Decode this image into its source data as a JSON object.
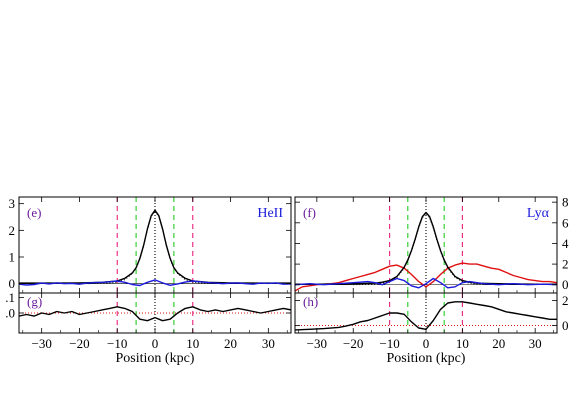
{
  "colors": {
    "black": "#000000",
    "blue": "#1a1adc",
    "red": "#e01010",
    "magenta": "#e8207a",
    "green": "#22cc22",
    "label": "#6a1b9a",
    "ion_label": "#1a1adc"
  },
  "chart_data": [
    {
      "id": "e",
      "type": "line",
      "panel_label": "(e)",
      "ion_label": "HeII",
      "xlabel": "Position (kpc)",
      "xlim": [
        -36,
        36
      ],
      "ylim": [
        -0.35,
        3.25
      ],
      "y_axis_side": "left",
      "xticks": [
        -30,
        -20,
        -10,
        0,
        10,
        20,
        30
      ],
      "yticks": [
        0,
        1,
        2,
        3
      ],
      "vlines": [
        {
          "x": -10,
          "color": "magenta"
        },
        {
          "x": 10,
          "color": "magenta"
        },
        {
          "x": -5,
          "color": "green"
        },
        {
          "x": 5,
          "color": "green"
        },
        {
          "x": 0,
          "color": "black"
        }
      ],
      "hline_zero": true,
      "series": [
        {
          "color": "black",
          "style": "solid",
          "x": [
            -36,
            -30,
            -20,
            -14,
            -10,
            -8,
            -6,
            -5,
            -4,
            -3,
            -2,
            -1,
            0,
            1,
            2,
            3,
            4,
            5,
            6,
            8,
            10,
            14,
            20,
            30,
            36
          ],
          "y": [
            0.02,
            0.02,
            0.03,
            0.05,
            0.1,
            0.2,
            0.4,
            0.6,
            0.95,
            1.45,
            2.05,
            2.55,
            2.75,
            2.55,
            2.05,
            1.45,
            0.95,
            0.6,
            0.4,
            0.2,
            0.1,
            0.05,
            0.03,
            0.02,
            0.02
          ]
        },
        {
          "color": "black",
          "style": "dotted",
          "x": [
            -20,
            -14,
            -10,
            -8,
            -6,
            -5,
            -4,
            -3,
            -2,
            -1,
            0,
            1,
            2,
            3,
            4,
            5,
            6,
            8,
            10,
            14,
            20
          ],
          "y": [
            0.0,
            0.01,
            0.05,
            0.15,
            0.38,
            0.58,
            0.92,
            1.42,
            2.02,
            2.52,
            2.72,
            2.52,
            2.02,
            1.42,
            0.92,
            0.58,
            0.38,
            0.15,
            0.05,
            0.01,
            0.0
          ]
        },
        {
          "color": "blue",
          "style": "solid",
          "x": [
            -36,
            -34,
            -32,
            -30,
            -28,
            -26,
            -24,
            -22,
            -20,
            -18,
            -16,
            -14,
            -12,
            -10,
            -8,
            -6,
            -4,
            -2,
            0,
            2,
            4,
            6,
            8,
            10,
            12,
            14,
            16,
            18,
            20,
            22,
            24,
            26,
            28,
            30,
            32,
            34,
            36
          ],
          "y": [
            -0.02,
            -0.05,
            -0.03,
            0.02,
            -0.01,
            0.03,
            0.0,
            0.01,
            -0.02,
            0.02,
            0.04,
            0.05,
            0.07,
            0.1,
            0.05,
            -0.03,
            -0.07,
            0.05,
            0.14,
            0.03,
            -0.06,
            -0.01,
            0.06,
            0.1,
            0.07,
            0.04,
            0.02,
            0.0,
            0.02,
            0.03,
            0.0,
            -0.02,
            0.02,
            0.01,
            0.03,
            -0.02,
            -0.01
          ]
        }
      ]
    },
    {
      "id": "f",
      "type": "line",
      "panel_label": "(f)",
      "ion_label": "Lyα",
      "xlabel": "Position (kpc)",
      "xlim": [
        -36,
        36
      ],
      "ylim": [
        -0.8,
        8.5
      ],
      "y_axis_side": "right",
      "xticks": [
        -30,
        -20,
        -10,
        0,
        10,
        20,
        30
      ],
      "yticks": [
        0,
        2,
        4,
        6,
        8
      ],
      "vlines": [
        {
          "x": -10,
          "color": "magenta"
        },
        {
          "x": 10,
          "color": "magenta"
        },
        {
          "x": -5,
          "color": "green"
        },
        {
          "x": 5,
          "color": "green"
        },
        {
          "x": 0,
          "color": "black"
        }
      ],
      "hline_zero": true,
      "series": [
        {
          "color": "red",
          "style": "solid",
          "x": [
            -36,
            -34,
            -32,
            -30,
            -28,
            -26,
            -24,
            -22,
            -20,
            -18,
            -16,
            -14,
            -12,
            -10,
            -8,
            -6,
            -4,
            -2,
            0,
            2,
            4,
            6,
            8,
            10,
            12,
            14,
            16,
            18,
            20,
            22,
            24,
            26,
            28,
            30,
            32,
            34,
            36
          ],
          "y": [
            -0.6,
            -0.2,
            -0.1,
            0.0,
            0.05,
            0.1,
            0.2,
            0.4,
            0.6,
            0.8,
            1.0,
            1.2,
            1.5,
            1.8,
            1.9,
            1.6,
            1.0,
            0.3,
            -0.2,
            0.3,
            1.0,
            1.6,
            1.9,
            2.1,
            2.0,
            2.0,
            1.8,
            1.6,
            1.5,
            1.2,
            0.9,
            0.7,
            0.5,
            0.4,
            0.3,
            0.3,
            0.2
          ]
        },
        {
          "color": "black",
          "style": "solid",
          "x": [
            -36,
            -30,
            -20,
            -14,
            -12,
            -10,
            -8,
            -6,
            -5,
            -4,
            -3,
            -2,
            -1,
            0,
            1,
            2,
            3,
            4,
            5,
            6,
            8,
            10,
            12,
            14,
            20,
            30,
            36
          ],
          "y": [
            0.05,
            0.05,
            0.1,
            0.15,
            0.25,
            0.4,
            0.8,
            1.7,
            2.4,
            3.3,
            4.4,
            5.6,
            6.6,
            7.0,
            6.6,
            5.6,
            4.4,
            3.3,
            2.4,
            1.7,
            0.8,
            0.4,
            0.25,
            0.15,
            0.1,
            0.05,
            0.05
          ]
        },
        {
          "color": "black",
          "style": "dotted",
          "x": [
            -20,
            -14,
            -12,
            -10,
            -8,
            -6,
            -5,
            -4,
            -3,
            -2,
            -1,
            0,
            1,
            2,
            3,
            4,
            5,
            6,
            8,
            10,
            12,
            14,
            20
          ],
          "y": [
            0.0,
            0.05,
            0.15,
            0.3,
            0.7,
            1.6,
            2.3,
            3.2,
            4.3,
            5.5,
            6.5,
            6.9,
            6.5,
            5.5,
            4.3,
            3.2,
            2.3,
            1.6,
            0.7,
            0.3,
            0.15,
            0.05,
            0.0
          ]
        },
        {
          "color": "blue",
          "style": "solid",
          "x": [
            -36,
            -32,
            -28,
            -24,
            -20,
            -16,
            -14,
            -12,
            -10,
            -8,
            -6,
            -4,
            -2,
            0,
            2,
            4,
            6,
            8,
            10,
            12,
            14,
            16,
            20,
            24,
            28,
            32,
            36
          ],
          "y": [
            0.0,
            0.1,
            0.0,
            0.1,
            0.2,
            0.3,
            0.2,
            0.0,
            0.3,
            0.6,
            0.4,
            -0.1,
            -0.3,
            0.1,
            0.6,
            0.2,
            -0.3,
            -0.2,
            0.2,
            0.3,
            0.2,
            0.1,
            0.0,
            0.1,
            0.0,
            0.05,
            0.0
          ]
        }
      ]
    },
    {
      "id": "g",
      "type": "line",
      "panel_label": "(g)",
      "ion_label": "",
      "xlabel": "Position (kpc)",
      "xlim": [
        -36,
        36
      ],
      "ylim": [
        -0.13,
        0.13
      ],
      "y_axis_side": "left",
      "xticks": [
        -30,
        -20,
        -10,
        0,
        10,
        20,
        30
      ],
      "yticks": [
        0,
        0.1
      ],
      "ytick_labels": [
        ".0",
        ".1"
      ],
      "vlines": [
        {
          "x": -10,
          "color": "magenta"
        },
        {
          "x": 10,
          "color": "magenta"
        },
        {
          "x": -5,
          "color": "green"
        },
        {
          "x": 5,
          "color": "green"
        },
        {
          "x": 0,
          "color": "black"
        }
      ],
      "hline_zero_red": true,
      "series": [
        {
          "color": "black",
          "style": "solid",
          "x": [
            -36,
            -34,
            -32,
            -30,
            -28,
            -26,
            -24,
            -22,
            -20,
            -18,
            -16,
            -14,
            -12,
            -10,
            -8,
            -6,
            -4,
            -2,
            0,
            2,
            4,
            6,
            8,
            10,
            12,
            14,
            16,
            18,
            20,
            22,
            24,
            26,
            28,
            30,
            32,
            34,
            36
          ],
          "y": [
            -0.02,
            -0.01,
            -0.02,
            0.0,
            -0.01,
            0.01,
            0.0,
            0.01,
            -0.01,
            0.0,
            0.01,
            0.02,
            0.03,
            0.04,
            0.03,
            0.01,
            -0.04,
            -0.05,
            -0.03,
            -0.05,
            -0.04,
            0.0,
            0.03,
            0.04,
            0.02,
            0.01,
            0.02,
            0.01,
            0.02,
            0.03,
            0.02,
            0.01,
            0.0,
            0.01,
            0.02,
            0.03,
            0.02
          ]
        }
      ]
    },
    {
      "id": "h",
      "type": "line",
      "panel_label": "(h)",
      "ion_label": "",
      "xlabel": "Position (kpc)",
      "xlim": [
        -36,
        36
      ],
      "ylim": [
        -0.6,
        2.6
      ],
      "y_axis_side": "right",
      "xticks": [
        -30,
        -20,
        -10,
        0,
        10,
        20,
        30
      ],
      "yticks": [
        0,
        2
      ],
      "vlines": [
        {
          "x": -10,
          "color": "magenta"
        },
        {
          "x": 10,
          "color": "magenta"
        },
        {
          "x": -5,
          "color": "green"
        },
        {
          "x": 5,
          "color": "green"
        },
        {
          "x": 0,
          "color": "black"
        }
      ],
      "hline_zero_red": true,
      "series": [
        {
          "color": "black",
          "style": "solid",
          "x": [
            -36,
            -32,
            -28,
            -24,
            -22,
            -20,
            -18,
            -16,
            -14,
            -12,
            -10,
            -8,
            -6,
            -4,
            -2,
            0,
            2,
            4,
            6,
            8,
            10,
            12,
            14,
            16,
            18,
            20,
            22,
            24,
            26,
            28,
            30,
            32,
            34,
            36
          ],
          "y": [
            -0.35,
            -0.3,
            -0.25,
            -0.15,
            -0.05,
            0.1,
            0.3,
            0.4,
            0.6,
            0.8,
            1.0,
            1.0,
            0.9,
            0.3,
            -0.2,
            -0.3,
            0.4,
            1.3,
            1.8,
            1.9,
            1.9,
            1.8,
            1.7,
            1.6,
            1.5,
            1.3,
            1.1,
            1.0,
            0.9,
            0.8,
            0.7,
            0.6,
            0.5,
            0.5
          ]
        }
      ]
    }
  ]
}
